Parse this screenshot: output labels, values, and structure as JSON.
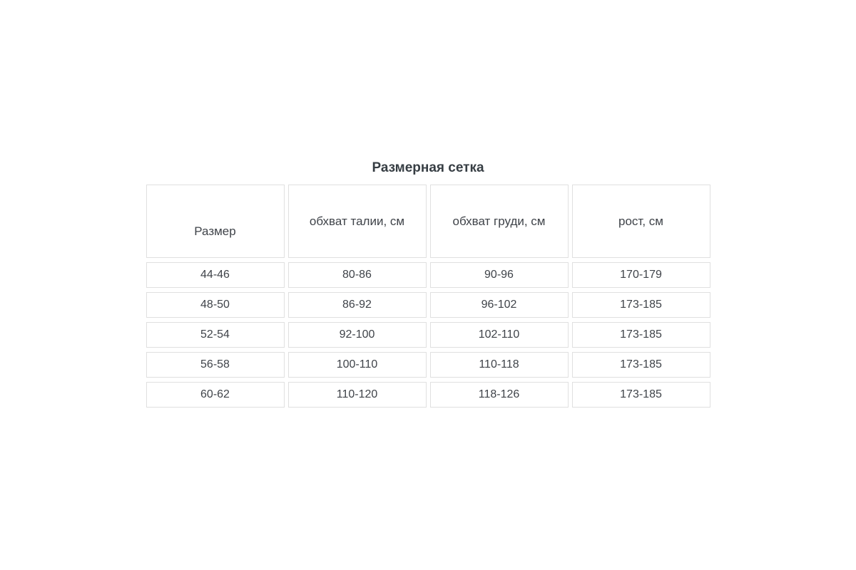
{
  "title": "Размерная сетка",
  "table": {
    "columns": [
      "Размер",
      "обхват талии, см",
      "обхват груди, см",
      "рост, см"
    ],
    "rows": [
      [
        "44-46",
        "80-86",
        "90-96",
        "170-179"
      ],
      [
        "48-50",
        "86-92",
        "96-102",
        "173-185"
      ],
      [
        "52-54",
        "92-100",
        "102-110",
        "173-185"
      ],
      [
        "56-58",
        "100-110",
        "110-118",
        "173-185"
      ],
      [
        "60-62",
        "110-120",
        "118-126",
        "173-185"
      ]
    ]
  },
  "chart_data": {
    "type": "table",
    "title": "Размерная сетка",
    "columns": [
      "Размер",
      "обхват талии, см",
      "обхват груди, см",
      "рост, см"
    ],
    "rows": [
      [
        "44-46",
        "80-86",
        "90-96",
        "170-179"
      ],
      [
        "48-50",
        "86-92",
        "96-102",
        "173-185"
      ],
      [
        "52-54",
        "92-100",
        "102-110",
        "173-185"
      ],
      [
        "56-58",
        "100-110",
        "110-118",
        "173-185"
      ],
      [
        "60-62",
        "110-120",
        "118-126",
        "173-185"
      ]
    ],
    "layout_hints": {
      "header_row_tall": true,
      "cells_separated_with_gaps": true,
      "text_alignment": "center"
    }
  },
  "colors": {
    "background": "#ffffff",
    "cell_background": "#ffffff",
    "border": "#e0e0e0",
    "text": "#3f4349",
    "title": "#373e44"
  }
}
